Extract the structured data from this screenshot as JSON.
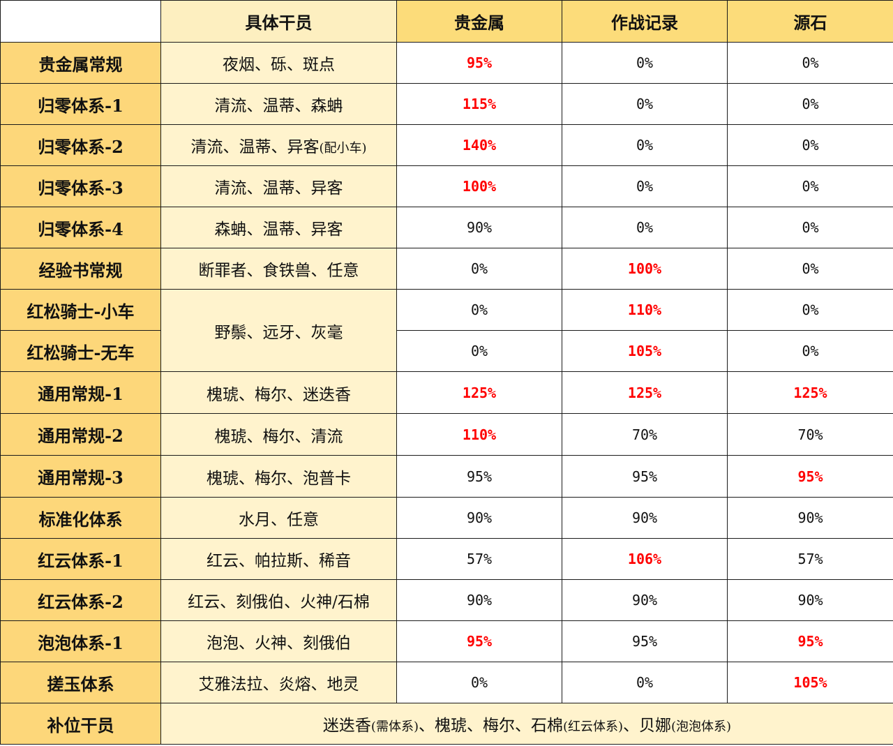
{
  "header": {
    "blank": "",
    "agents": "具体干员",
    "col_precious": "贵金属",
    "col_record": "作战记录",
    "col_originium": "源石"
  },
  "rows": [
    {
      "name": "贵金属常规",
      "agents": "夜烟、砾、斑点",
      "precious": "95%",
      "record": "0%",
      "originium": "0%"
    },
    {
      "name": "归零体系-1",
      "agents": "清流、温蒂、森蚺",
      "precious": "115%",
      "record": "0%",
      "originium": "0%"
    },
    {
      "name": "归零体系-2",
      "agents": "清流、温蒂、异客",
      "agents_note": "(配小车)",
      "precious": "140%",
      "record": "0%",
      "originium": "0%"
    },
    {
      "name": "归零体系-3",
      "agents": "清流、温蒂、异客",
      "precious": "100%",
      "record": "0%",
      "originium": "0%"
    },
    {
      "name": "归零体系-4",
      "agents": "森蚺、温蒂、异客",
      "precious": "90%",
      "record": "0%",
      "originium": "0%"
    },
    {
      "name": "经验书常规",
      "agents": "断罪者、食铁兽、任意",
      "precious": "0%",
      "record": "100%",
      "originium": "0%"
    },
    {
      "name": "红松骑士-小车",
      "agents": "野鬃、远牙、灰毫",
      "precious": "0%",
      "record": "110%",
      "originium": "0%"
    },
    {
      "name": "红松骑士-无车",
      "agents": "",
      "precious": "0%",
      "record": "105%",
      "originium": "0%"
    },
    {
      "name": "通用常规-1",
      "agents": "槐琥、梅尔、迷迭香",
      "precious": "125%",
      "record": "125%",
      "originium": "125%"
    },
    {
      "name": "通用常规-2",
      "agents": "槐琥、梅尔、清流",
      "precious": "110%",
      "record": "70%",
      "originium": "70%"
    },
    {
      "name": "通用常规-3",
      "agents": "槐琥、梅尔、泡普卡",
      "precious": "95%",
      "record": "95%",
      "originium": "95%"
    },
    {
      "name": "标准化体系",
      "agents": "水月、任意",
      "precious": "90%",
      "record": "90%",
      "originium": "90%"
    },
    {
      "name": "红云体系-1",
      "agents": "红云、帕拉斯、稀音",
      "precious": "57%",
      "record": "106%",
      "originium": "57%"
    },
    {
      "name": "红云体系-2",
      "agents": "红云、刻俄伯、火神/石棉",
      "precious": "90%",
      "record": "90%",
      "originium": "90%"
    },
    {
      "name": "泡泡体系-1",
      "agents": "泡泡、火神、刻俄伯",
      "precious": "95%",
      "record": "95%",
      "originium": "95%"
    },
    {
      "name": "搓玉体系",
      "agents": "艾雅法拉、炎熔、地灵",
      "precious": "0%",
      "record": "0%",
      "originium": "105%"
    }
  ],
  "footer": {
    "name": "补位干员",
    "p1": "迷迭香",
    "n1": "(需体系)",
    "p2": "、槐琥、梅尔、石棉",
    "n2": "(红云体系)",
    "p3": "、贝娜",
    "n3": "(泡泡体系)"
  },
  "colors": {
    "highlight": "#ff0000",
    "rowname_bg": "#fdd77a",
    "agents_bg": "#fff3cd",
    "header_res_bg": "#fcdc7a"
  }
}
